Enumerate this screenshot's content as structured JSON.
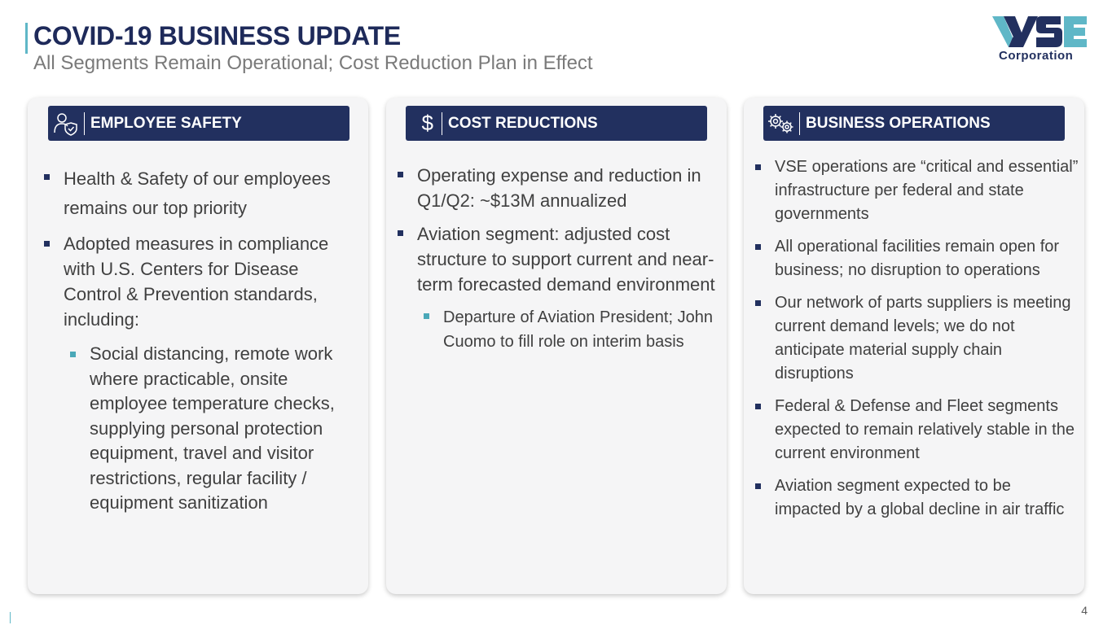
{
  "header": {
    "title": "COVID-19 BUSINESS UPDATE",
    "subtitle": "All Segments Remain Operational; Cost Reduction Plan in Effect"
  },
  "logo": {
    "name": "VSE",
    "sub": "Corporation"
  },
  "colors": {
    "navy": "#22305f",
    "teal": "#5fb7c7",
    "card_bg": "#f5f5f6"
  },
  "cards": [
    {
      "icon": "person-shield-icon",
      "header": "EMPLOYEE SAFETY",
      "bullets": [
        "Health & Safety of our employees remains our top priority",
        "Adopted measures in compliance with U.S. Centers for Disease Control & Prevention standards, including:"
      ],
      "sub_bullets": [
        "Social distancing, remote work where practicable, onsite employee temperature checks, supplying personal protection equipment, travel and visitor restrictions, regular facility / equipment sanitization"
      ]
    },
    {
      "icon": "dollar-icon",
      "icon_glyph": "$",
      "header": "COST REDUCTIONS",
      "bullets": [
        "Operating expense and reduction in Q1/Q2: ~$13M annualized",
        "Aviation segment: adjusted cost structure to support current and near-term forecasted demand environment"
      ],
      "sub_bullets": [
        "Departure of Aviation President; John Cuomo to fill role on interim basis"
      ]
    },
    {
      "icon": "gears-icon",
      "header": "BUSINESS OPERATIONS",
      "bullets": [
        "VSE operations are “critical and essential” infrastructure per federal and state governments",
        "All operational facilities remain open for business; no disruption to operations",
        "Our network of parts suppliers is meeting current demand levels; we do not anticipate material supply chain disruptions",
        "Federal & Defense and Fleet segments expected to remain relatively stable in the current environment",
        "Aviation segment expected to be impacted by a global decline in air traffic"
      ]
    }
  ],
  "page_number": "4"
}
